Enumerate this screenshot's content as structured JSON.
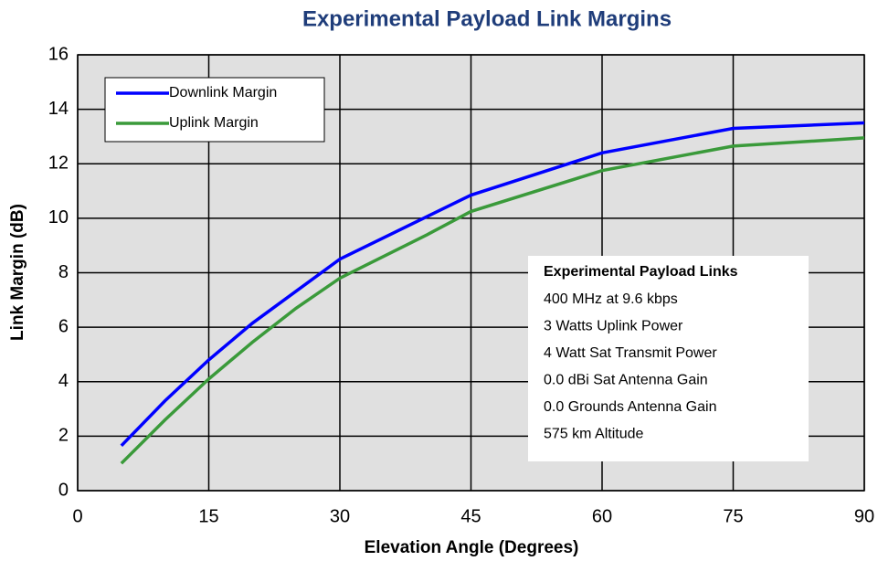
{
  "chart_data": {
    "type": "line",
    "title": "Experimental Payload Link Margins",
    "xlabel": "Elevation Angle (Degrees)",
    "ylabel": "Link Margin (dB)",
    "xlim": [
      0,
      90
    ],
    "ylim": [
      0,
      16
    ],
    "xticks": [
      0,
      15,
      30,
      45,
      60,
      75,
      90
    ],
    "yticks": [
      0,
      2,
      4,
      6,
      8,
      10,
      12,
      14,
      16
    ],
    "grid": true,
    "legend": "upper left",
    "series": [
      {
        "name": "Downlink Margin",
        "color": "#0000ff",
        "x": [
          5,
          10,
          15,
          20,
          30,
          45,
          60,
          75,
          90
        ],
        "values": [
          1.65,
          3.3,
          4.8,
          6.15,
          8.5,
          10.85,
          12.4,
          13.3,
          13.5
        ]
      },
      {
        "name": "Uplink Margin",
        "color": "#3a9a3a",
        "x": [
          5,
          10,
          15,
          20,
          25,
          30,
          40,
          45,
          60,
          75,
          90
        ],
        "values": [
          1.0,
          2.6,
          4.1,
          5.45,
          6.7,
          7.8,
          9.4,
          10.25,
          11.75,
          12.65,
          12.95
        ]
      }
    ],
    "annotation": {
      "title": "Experimental Payload Links",
      "lines": [
        "400 MHz at 9.6 kbps",
        "3 Watts Uplink Power",
        "4 Watt Sat Transmit Power",
        "0.0 dBi Sat Antenna Gain",
        "0.0 Grounds Antenna Gain",
        "575 km Altitude"
      ]
    }
  }
}
